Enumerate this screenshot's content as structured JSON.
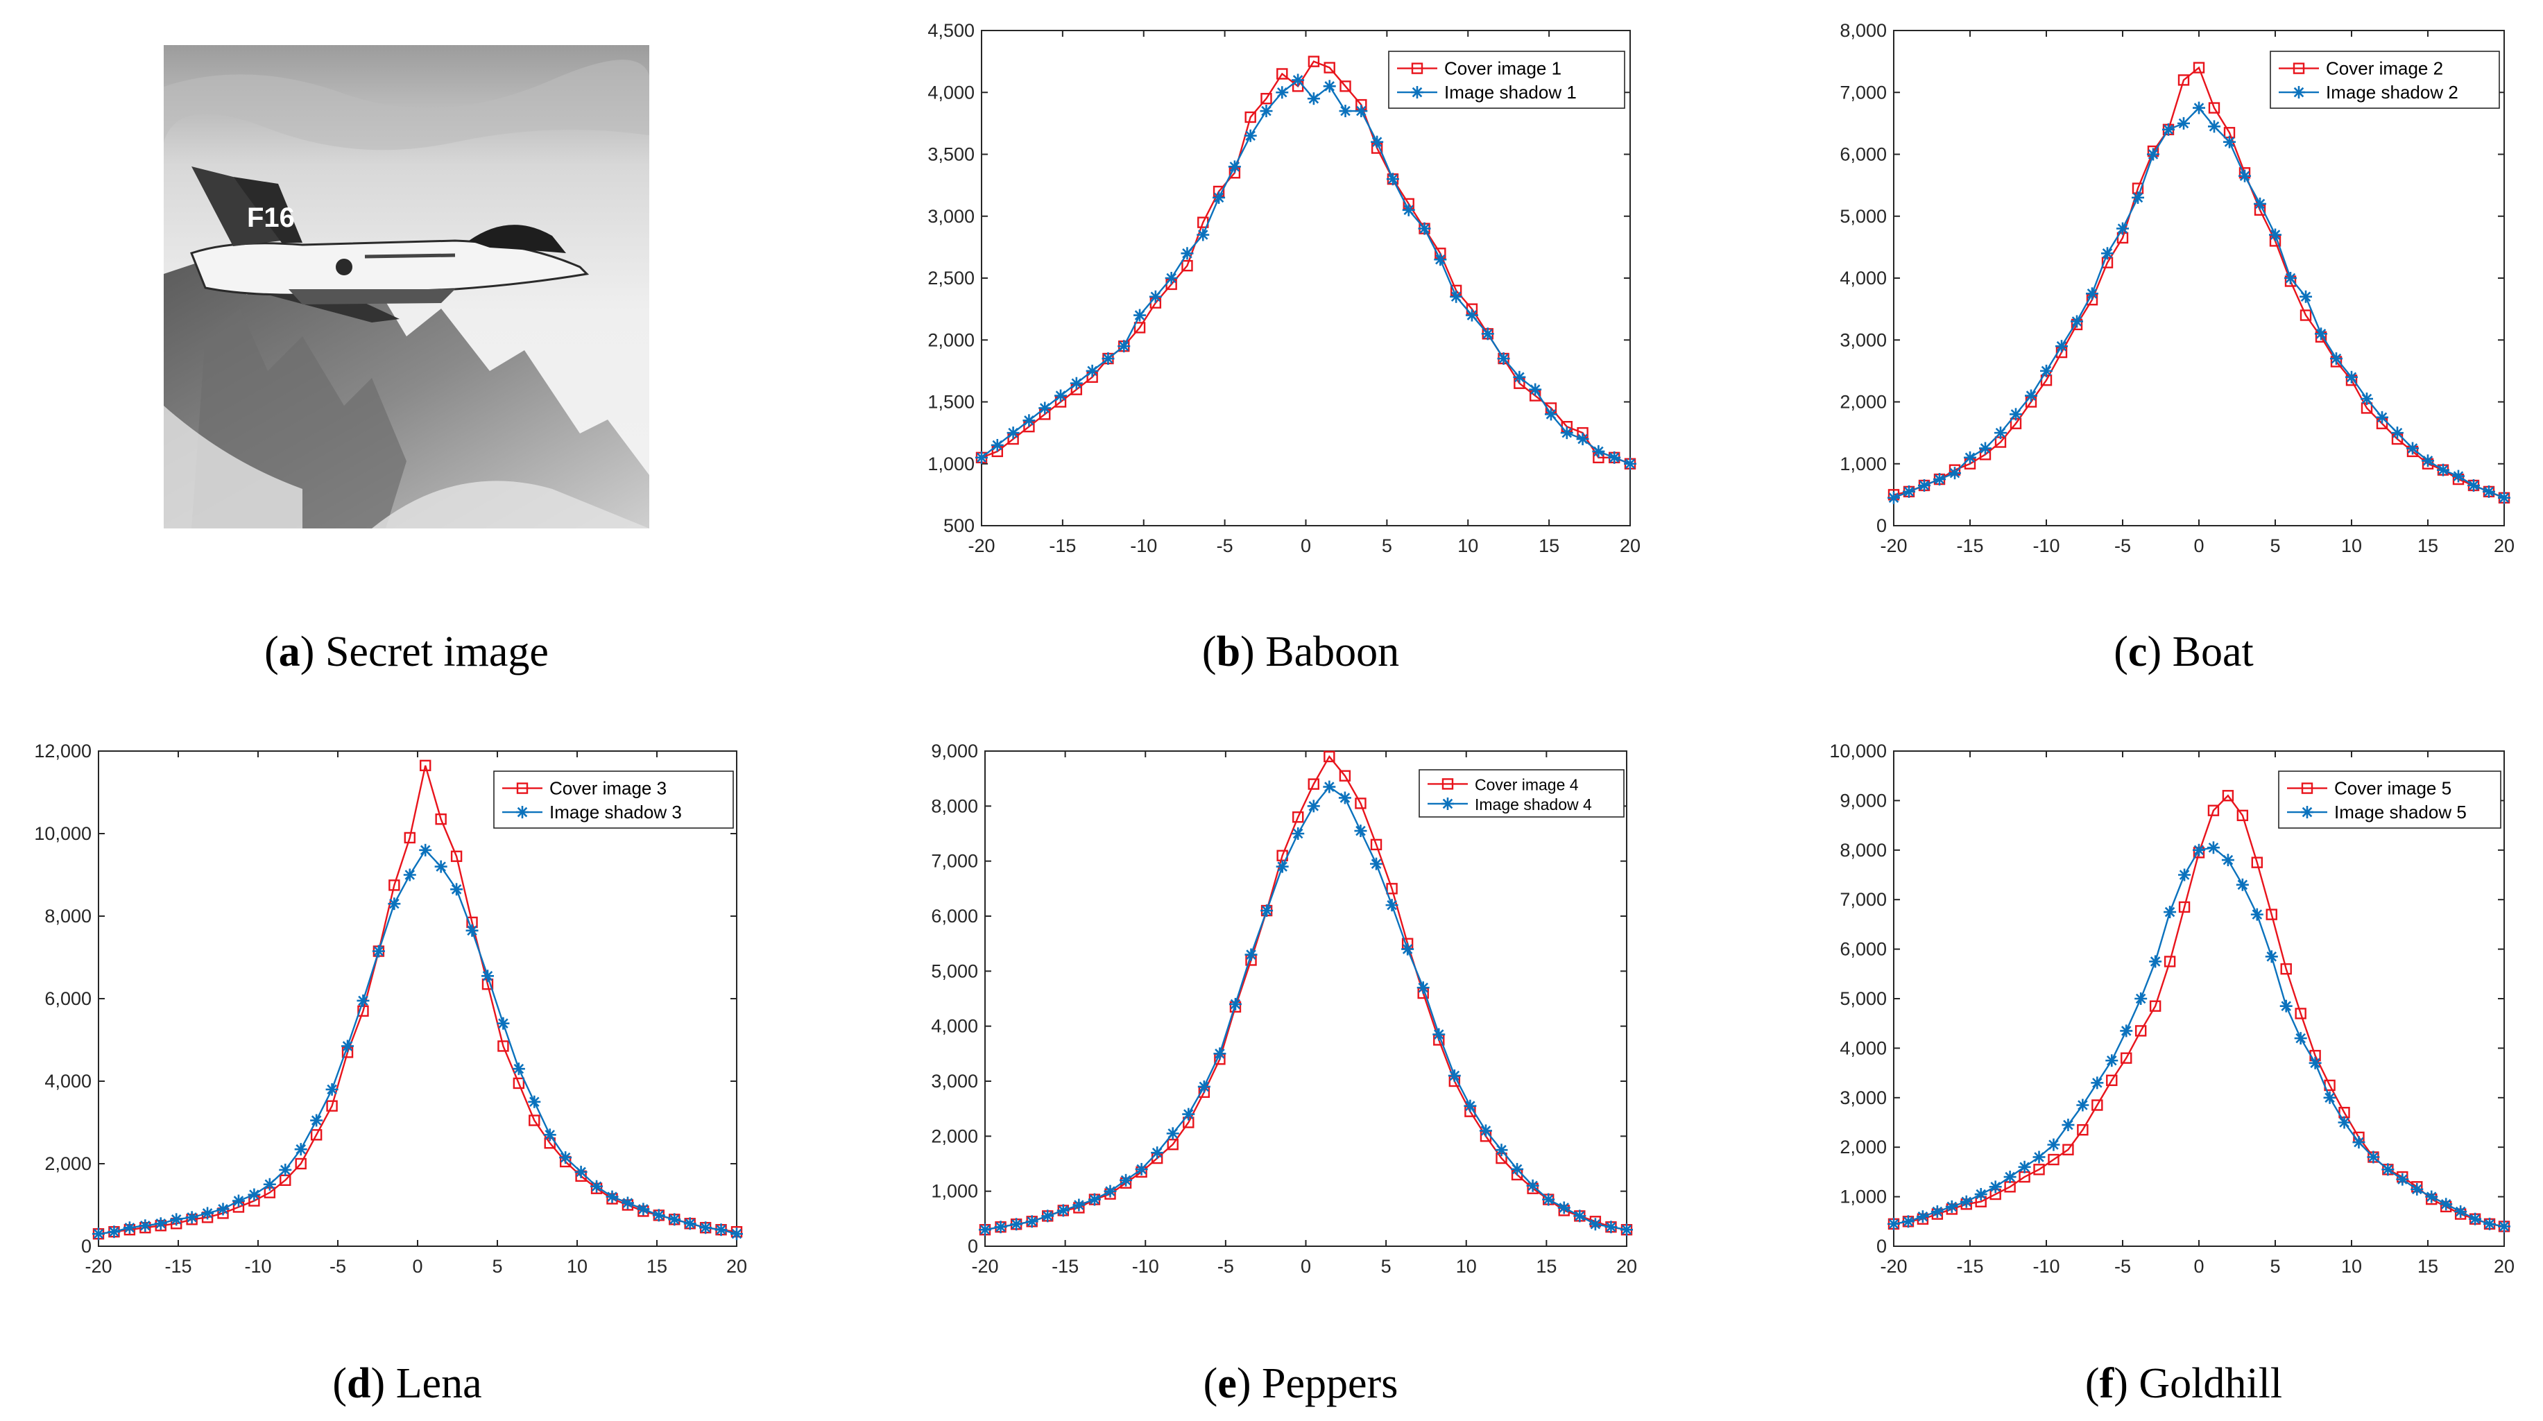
{
  "captions": [
    {
      "letter": "a",
      "text": "Secret image"
    },
    {
      "letter": "b",
      "text": "Baboon"
    },
    {
      "letter": "c",
      "text": "Boat"
    },
    {
      "letter": "d",
      "text": "Lena"
    },
    {
      "letter": "e",
      "text": "Peppers"
    },
    {
      "letter": "f",
      "text": "Goldhill"
    }
  ],
  "secret_image": {
    "icon": "fighter-jet-over-mountains-photo",
    "tail_marking": "F16"
  },
  "colors": {
    "cover": "#e8141c",
    "shadow": "#0b72bd",
    "axis": "#262626"
  },
  "chart_data": [
    {
      "type": "line",
      "xlim": [
        -20,
        20
      ],
      "ylim": [
        500,
        4500
      ],
      "xticks": [
        "-20",
        "-15",
        "-10",
        "-5",
        "0",
        "5",
        "10",
        "15",
        "20"
      ],
      "yticks": [
        "500",
        "1,000",
        "1,500",
        "2,000",
        "2,500",
        "3,000",
        "3,500",
        "4,000",
        "4,500"
      ],
      "legend": "top-right",
      "grid": false,
      "series": [
        {
          "name": "Cover image 1",
          "marker": "square",
          "values": [
            1050,
            1100,
            1200,
            1300,
            1400,
            1500,
            1600,
            1700,
            1850,
            1950,
            2100,
            2300,
            2450,
            2600,
            2950,
            3200,
            3350,
            3800,
            3950,
            4150,
            4050,
            4250,
            4200,
            4050,
            3900,
            3550,
            3300,
            3100,
            2900,
            2700,
            2400,
            2250,
            2050,
            1850,
            1650,
            1550,
            1450,
            1300,
            1250,
            1050,
            1050,
            1000
          ]
        },
        {
          "name": "Image shadow 1",
          "marker": "asterisk",
          "values": [
            1050,
            1150,
            1250,
            1350,
            1450,
            1550,
            1650,
            1750,
            1850,
            1950,
            2200,
            2350,
            2500,
            2700,
            2850,
            3150,
            3400,
            3650,
            3850,
            4000,
            4100,
            3950,
            4050,
            3850,
            3850,
            3600,
            3300,
            3050,
            2900,
            2650,
            2350,
            2200,
            2050,
            1850,
            1700,
            1600,
            1400,
            1250,
            1200,
            1100,
            1050,
            1000
          ]
        }
      ]
    },
    {
      "type": "line",
      "xlim": [
        -20,
        20
      ],
      "ylim": [
        0,
        8000
      ],
      "xticks": [
        "-20",
        "-15",
        "-10",
        "-5",
        "0",
        "5",
        "10",
        "15",
        "20"
      ],
      "yticks": [
        "0",
        "1,000",
        "2,000",
        "3,000",
        "4,000",
        "5,000",
        "6,000",
        "7,000",
        "8,000"
      ],
      "legend": "top-right",
      "grid": false,
      "series": [
        {
          "name": "Cover image 2",
          "marker": "square",
          "values": [
            500,
            550,
            650,
            750,
            900,
            1000,
            1150,
            1350,
            1650,
            2000,
            2350,
            2800,
            3250,
            3650,
            4250,
            4650,
            5450,
            6050,
            6400,
            7200,
            7400,
            6750,
            6350,
            5700,
            5100,
            4600,
            3950,
            3400,
            3050,
            2650,
            2350,
            1900,
            1650,
            1400,
            1200,
            1000,
            900,
            750,
            650,
            550,
            450
          ]
        },
        {
          "name": "Image shadow 2",
          "marker": "asterisk",
          "values": [
            450,
            550,
            650,
            750,
            850,
            1100,
            1250,
            1500,
            1800,
            2100,
            2500,
            2900,
            3300,
            3750,
            4400,
            4800,
            5300,
            6000,
            6400,
            6500,
            6750,
            6450,
            6200,
            5650,
            5200,
            4700,
            4000,
            3700,
            3100,
            2700,
            2400,
            2050,
            1750,
            1500,
            1250,
            1050,
            900,
            800,
            650,
            550,
            450
          ]
        }
      ]
    },
    {
      "type": "line",
      "xlim": [
        -20,
        20
      ],
      "ylim": [
        0,
        12000
      ],
      "xticks": [
        "-20",
        "-15",
        "-10",
        "-5",
        "0",
        "5",
        "10",
        "15",
        "20"
      ],
      "yticks": [
        "0",
        "2,000",
        "4,000",
        "6,000",
        "8,000",
        "10,000",
        "12,000"
      ],
      "legend": "top-right",
      "grid": false,
      "series": [
        {
          "name": "Cover image 3",
          "marker": "square",
          "values": [
            300,
            350,
            400,
            450,
            500,
            550,
            650,
            700,
            800,
            950,
            1100,
            1300,
            1600,
            2000,
            2700,
            3400,
            4700,
            5700,
            7150,
            8750,
            9900,
            11650,
            10350,
            9450,
            7850,
            6350,
            4850,
            3950,
            3050,
            2500,
            2050,
            1700,
            1400,
            1150,
            1000,
            850,
            750,
            650,
            550,
            450,
            400,
            350
          ]
        },
        {
          "name": "Image shadow 3",
          "marker": "asterisk",
          "values": [
            300,
            350,
            450,
            500,
            550,
            650,
            700,
            800,
            900,
            1100,
            1250,
            1500,
            1850,
            2350,
            3050,
            3800,
            4850,
            5950,
            7150,
            8300,
            9000,
            9600,
            9200,
            8650,
            7650,
            6550,
            5400,
            4300,
            3500,
            2700,
            2150,
            1800,
            1450,
            1200,
            1050,
            900,
            750,
            650,
            550,
            450,
            400,
            300
          ]
        }
      ]
    },
    {
      "type": "line",
      "xlim": [
        -20,
        20
      ],
      "ylim": [
        0,
        9000
      ],
      "xticks": [
        "-20",
        "-15",
        "-10",
        "-5",
        "0",
        "5",
        "10",
        "15",
        "20"
      ],
      "yticks": [
        "0",
        "1,000",
        "2,000",
        "3,000",
        "4,000",
        "5,000",
        "6,000",
        "7,000",
        "8,000",
        "9,000"
      ],
      "legend": "top-right",
      "grid": false,
      "series": [
        {
          "name": "Cover image 4",
          "marker": "square",
          "values": [
            300,
            350,
            400,
            450,
            550,
            650,
            700,
            850,
            950,
            1150,
            1350,
            1600,
            1850,
            2250,
            2800,
            3400,
            4350,
            5200,
            6100,
            7100,
            7800,
            8400,
            8900,
            8550,
            8050,
            7300,
            6500,
            5500,
            4600,
            3750,
            3000,
            2450,
            2000,
            1600,
            1300,
            1050,
            850,
            650,
            550,
            450,
            350,
            300
          ]
        },
        {
          "name": "Image shadow 4",
          "marker": "asterisk",
          "values": [
            300,
            350,
            400,
            450,
            550,
            650,
            750,
            850,
            1000,
            1200,
            1400,
            1700,
            2050,
            2400,
            2900,
            3500,
            4400,
            5300,
            6100,
            6900,
            7500,
            8000,
            8350,
            8150,
            7550,
            6950,
            6200,
            5400,
            4700,
            3850,
            3100,
            2550,
            2100,
            1750,
            1400,
            1100,
            850,
            700,
            550,
            400,
            350,
            300
          ]
        }
      ]
    },
    {
      "type": "line",
      "xlim": [
        -20,
        20
      ],
      "ylim": [
        0,
        10000
      ],
      "xticks": [
        "-20",
        "-15",
        "-10",
        "-5",
        "0",
        "5",
        "10",
        "15",
        "20"
      ],
      "yticks": [
        "0",
        "1,000",
        "2,000",
        "3,000",
        "4,000",
        "5,000",
        "6,000",
        "7,000",
        "8,000",
        "9,000",
        "10,000"
      ],
      "legend": "top-right",
      "grid": false,
      "series": [
        {
          "name": "Cover image 5",
          "marker": "square",
          "values": [
            450,
            500,
            550,
            650,
            750,
            850,
            900,
            1050,
            1200,
            1400,
            1550,
            1750,
            1950,
            2350,
            2850,
            3350,
            3800,
            4350,
            4850,
            5750,
            6850,
            7950,
            8800,
            9100,
            8700,
            7750,
            6700,
            5600,
            4700,
            3850,
            3250,
            2700,
            2200,
            1800,
            1550,
            1400,
            1200,
            950,
            800,
            650,
            550,
            450,
            400
          ]
        },
        {
          "name": "Image shadow 5",
          "marker": "asterisk",
          "values": [
            450,
            500,
            600,
            700,
            800,
            900,
            1050,
            1200,
            1400,
            1600,
            1800,
            2050,
            2450,
            2850,
            3300,
            3750,
            4350,
            5000,
            5750,
            6750,
            7500,
            8000,
            8050,
            7800,
            7300,
            6700,
            5850,
            4850,
            4200,
            3700,
            3000,
            2500,
            2100,
            1800,
            1550,
            1350,
            1150,
            1000,
            850,
            700,
            550,
            450,
            400
          ]
        }
      ]
    }
  ]
}
